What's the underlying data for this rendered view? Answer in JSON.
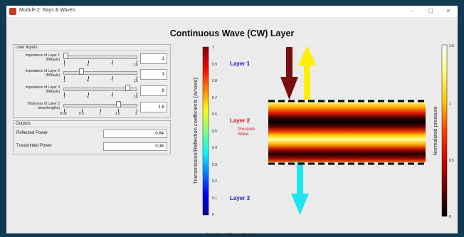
{
  "window": {
    "title": "Module 2: Rays & Waves",
    "minimize": "–",
    "maximize": "☐",
    "close": "✕"
  },
  "main_title": "Continuous Wave (CW) Layer",
  "user_inputs": {
    "panel_title": "User Inputs",
    "controls": [
      {
        "label_line1": "Impedance of Layer 1",
        "label_line2": "(MRayls)",
        "value": "1",
        "fraction": 0.0,
        "ticks": [
          "1",
          "4",
          "7",
          "10"
        ]
      },
      {
        "label_line1": "Impedance of Layer 2",
        "label_line2": "(MRayls)",
        "value": "3",
        "fraction": 0.222,
        "ticks": [
          "1",
          "4",
          "7",
          "10"
        ]
      },
      {
        "label_line1": "Impedance of Layer 3",
        "label_line2": "(MRayls)",
        "value": "9",
        "fraction": 0.889,
        "ticks": [
          "1",
          "4",
          "7",
          "10"
        ]
      },
      {
        "label_line1": "Thickness of Layer 2",
        "label_line2": "(wavelengths)",
        "value": "1.5",
        "fraction": 0.75,
        "ticks": [
          "0.05",
          "0.5",
          "1",
          "1.5",
          "2"
        ]
      }
    ]
  },
  "outputs": {
    "panel_title": "Outputs",
    "reflected_label": "Reflected Power",
    "reflected_value": "0.64",
    "transmitted_label": "Transmitted Power",
    "transmitted_value": "0.36"
  },
  "left_colorbar": {
    "label": "Transmission/Reflection coefficients (Arrows)",
    "ticks": [
      "1",
      "0.9",
      "0.8",
      "0.7",
      "0.6",
      "0.5",
      "0.4",
      "0.3",
      "0.2",
      "0.1",
      "0"
    ]
  },
  "right_colorbar": {
    "label": "Normalized pressure",
    "ticks": [
      "1.5",
      "1",
      "0.5",
      "0"
    ]
  },
  "diagram": {
    "layer1_label": "Layer 1",
    "layer2_label": "Layer 2",
    "pressure_wave_line1": "Pressure",
    "pressure_wave_line2": "Wave",
    "layer3_label": "Layer 3",
    "colors": {
      "incident_arrow": "#7a0d10",
      "reflected_arrow": "#ffee00",
      "transmitted_arrow": "#1ee6ee",
      "layer_text_blue": "#1a1acc",
      "layer_text_red": "#d4141a"
    }
  },
  "footer": "Essentials of Ultrasound Imaging"
}
